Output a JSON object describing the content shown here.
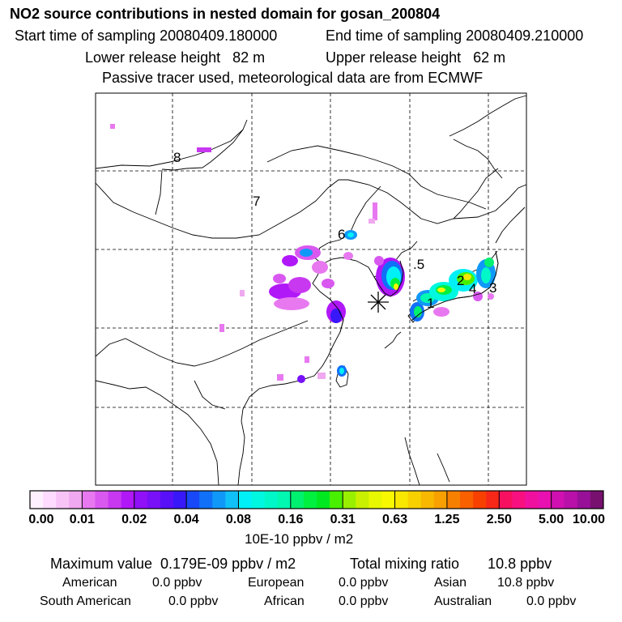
{
  "header": {
    "title": "NO2 source contributions in nested domain for gosan_200804",
    "start_time": "Start time of sampling 20080409.180000",
    "end_time": "End time of sampling 20080409.210000",
    "lower_release": "Lower release height   82 m",
    "upper_release": "Upper release height   62 m",
    "tracer_note": "Passive tracer used, meteorological data are from ECMWF"
  },
  "map": {
    "region_labels": [
      "8",
      "7",
      "6",
      ".5",
      "2",
      "4",
      "3",
      "1"
    ],
    "receptor_marker": "asterisk-icon",
    "colors": {
      "outline": "#000000",
      "grid": "#000000"
    }
  },
  "colorbar": {
    "ticks": [
      "0.00",
      "0.01",
      "0.02",
      "0.04",
      "0.08",
      "0.16",
      "0.31",
      "0.63",
      "1.25",
      "2.50",
      "5.00",
      "10.00"
    ],
    "unit": "10E-10 ppbv / m2",
    "colors": [
      [
        "#fff0ff",
        "#ffdcff",
        "#f8c4f8",
        "#f0a8f0"
      ],
      [
        "#e878f0",
        "#d858f0",
        "#c838f0",
        "#b018f8"
      ],
      [
        "#9010f8",
        "#7810f8",
        "#5810f8",
        "#3818f8"
      ],
      [
        "#1848f8",
        "#1070f8",
        "#1098f8",
        "#10c0f8"
      ],
      [
        "#00f0f8",
        "#00f8e0",
        "#00f8c8",
        "#00f8b0"
      ],
      [
        "#00f070",
        "#00f040",
        "#00e820",
        "#48f000"
      ],
      [
        "#98f000",
        "#c8f000",
        "#e8f800",
        "#f8f800"
      ],
      [
        "#f8e800",
        "#f8d000",
        "#f8b800",
        "#f8a000"
      ],
      [
        "#f88000",
        "#f86000",
        "#f84000",
        "#f82818"
      ],
      [
        "#f81060",
        "#f81080",
        "#f010a0",
        "#e810b0"
      ],
      [
        "#d010b0",
        "#b810a8",
        "#981098",
        "#781070"
      ]
    ]
  },
  "stats": {
    "max_value": "Maximum value  0.179E-09 ppbv / m2",
    "total_mixing": "Total mixing ratio       10.8 ppbv",
    "regions": [
      {
        "name": "American",
        "value": "0.0 ppbv"
      },
      {
        "name": "European",
        "value": "0.0 ppbv"
      },
      {
        "name": "Asian",
        "value": "10.8 ppbv"
      },
      {
        "name": "South American",
        "value": "0.0 ppbv"
      },
      {
        "name": "African",
        "value": "0.0 ppbv"
      },
      {
        "name": "Australian",
        "value": "0.0 ppbv"
      }
    ]
  }
}
